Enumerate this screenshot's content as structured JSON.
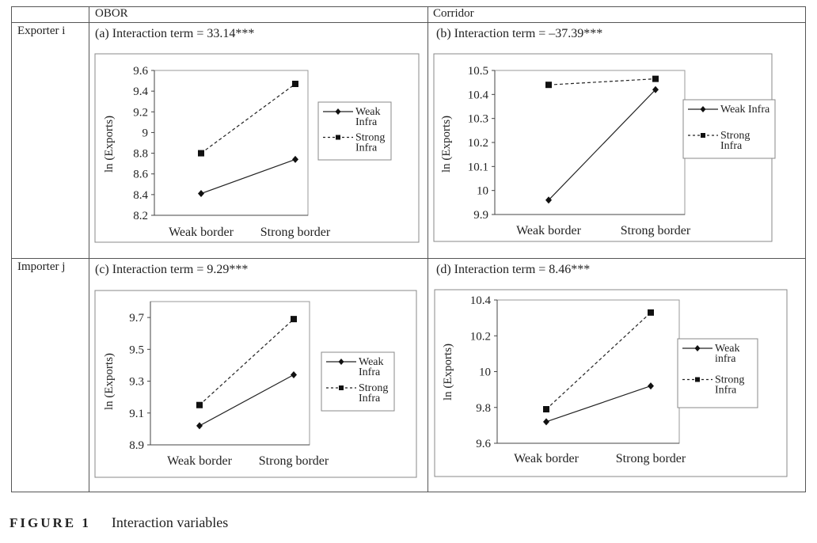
{
  "table": {
    "col_headers": [
      "OBOR",
      "Corridor"
    ],
    "row_headers": [
      "Exporter i",
      "Importer j"
    ]
  },
  "caption": {
    "figure_label": "FIGURE 1",
    "text": "Interaction variables"
  },
  "chart_data": [
    {
      "panel_label": "(a)  Interaction term = 33.14***",
      "type": "line",
      "categories": [
        "Weak border",
        "Strong border"
      ],
      "ylabel": "ln (Exports)",
      "ylim": [
        8.2,
        9.6
      ],
      "yticks": [
        8.2,
        8.4,
        8.6,
        8.8,
        9,
        9.2,
        9.4,
        9.6
      ],
      "series": [
        {
          "name": [
            "Weak",
            "Infra"
          ],
          "style": "solid",
          "marker": "diamond",
          "values": [
            8.41,
            8.74
          ]
        },
        {
          "name": [
            "Strong",
            "Infra"
          ],
          "style": "dashed",
          "marker": "square",
          "values": [
            8.8,
            9.47
          ]
        }
      ]
    },
    {
      "panel_label": "(b)  Interaction term = –37.39***",
      "type": "line",
      "categories": [
        "Weak border",
        "Strong border"
      ],
      "ylabel": "ln (Exports)",
      "ylim": [
        9.9,
        10.5
      ],
      "yticks": [
        9.9,
        10,
        10.1,
        10.2,
        10.3,
        10.4,
        10.5
      ],
      "series": [
        {
          "name": [
            "Weak Infra"
          ],
          "style": "solid",
          "marker": "diamond",
          "values": [
            9.96,
            10.42
          ]
        },
        {
          "name": [
            "Strong",
            "Infra"
          ],
          "style": "dashed",
          "marker": "square",
          "values": [
            10.44,
            10.465
          ]
        }
      ]
    },
    {
      "panel_label": "(c)  Interaction term = 9.29***",
      "type": "line",
      "categories": [
        "Weak border",
        "Strong border"
      ],
      "ylabel": "ln (Exports)",
      "ylim": [
        8.9,
        9.8
      ],
      "yticks": [
        8.9,
        9.1,
        9.3,
        9.5,
        9.7
      ],
      "series": [
        {
          "name": [
            "Weak",
            "Infra"
          ],
          "style": "solid",
          "marker": "diamond",
          "values": [
            9.02,
            9.34
          ]
        },
        {
          "name": [
            "Strong",
            "Infra"
          ],
          "style": "dashed",
          "marker": "square",
          "values": [
            9.15,
            9.69
          ]
        }
      ]
    },
    {
      "panel_label": "(d)  Interaction term = 8.46***",
      "type": "line",
      "categories": [
        "Weak border",
        "Strong border"
      ],
      "ylabel": "ln (Exports)",
      "ylim": [
        9.6,
        10.4
      ],
      "yticks": [
        9.6,
        9.8,
        10,
        10.2,
        10.4
      ],
      "series": [
        {
          "name": [
            "Weak",
            "infra"
          ],
          "style": "solid",
          "marker": "diamond",
          "values": [
            9.72,
            9.92
          ]
        },
        {
          "name": [
            "Strong",
            "Infra"
          ],
          "style": "dashed",
          "marker": "square",
          "values": [
            9.79,
            10.33
          ]
        }
      ]
    }
  ]
}
